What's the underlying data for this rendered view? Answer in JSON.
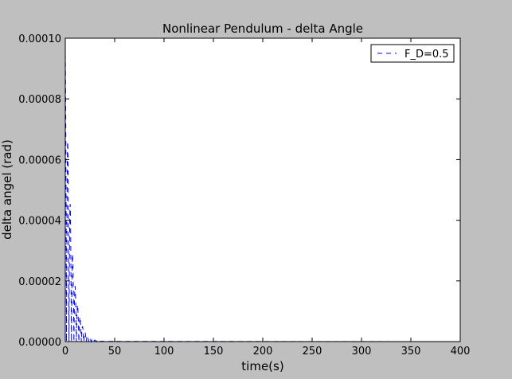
{
  "chart_data": {
    "type": "line",
    "title": "Nonlinear Pendulum - delta Angle",
    "xlabel": "time(s)",
    "ylabel": "delta angel (rad)",
    "xlim": [
      0,
      400
    ],
    "ylim": [
      0,
      0.0001
    ],
    "x_ticks": [
      0,
      50,
      100,
      150,
      200,
      250,
      300,
      350,
      400
    ],
    "x_tick_labels": [
      "0",
      "50",
      "100",
      "150",
      "200",
      "250",
      "300",
      "350",
      "400"
    ],
    "y_ticks": [
      0,
      2e-05,
      4e-05,
      6e-05,
      8e-05,
      0.0001
    ],
    "y_tick_labels": [
      "0.00000",
      "0.00002",
      "0.00004",
      "0.00006",
      "0.00008",
      "0.00010"
    ],
    "legend": {
      "position": "top-right"
    },
    "series": [
      {
        "name": "F_D=0.5",
        "color": "#0000ff",
        "style": "dashed",
        "envelope": {
          "start_value": 9.5e-05,
          "peaks": [
            {
              "t": 0.0,
              "v": 9.5e-05
            },
            {
              "t": 5.0,
              "v": 4.5e-05
            },
            {
              "t": 10.0,
              "v": 1.8e-05
            },
            {
              "t": 15.0,
              "v": 8e-06
            },
            {
              "t": 20.0,
              "v": 3e-06
            },
            {
              "t": 25.0,
              "v": 1.2e-06
            },
            {
              "t": 30.0,
              "v": 5e-07
            },
            {
              "t": 40.0,
              "v": 1e-07
            },
            {
              "t": 400.0,
              "v": 0.0
            }
          ],
          "oscillation_period_s": 2.5
        }
      }
    ]
  }
}
